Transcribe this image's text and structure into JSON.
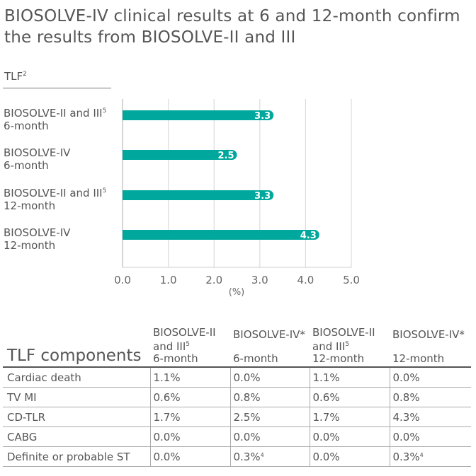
{
  "headline": {
    "line1": "BIOSOLVE-IV clinical results at 6 and 12-month confirm",
    "line2": "the results from BIOSOLVE-II and III"
  },
  "chart_data": {
    "type": "bar",
    "orientation": "horizontal",
    "ylabel": "TLF",
    "ylabel_sup": "2",
    "xlabel": "(%)",
    "xlim": [
      0,
      5
    ],
    "xticks": [
      "0.0",
      "1.0",
      "2.0",
      "3.0",
      "4.0",
      "5.0"
    ],
    "grid": true,
    "bar_color": "#00a79d",
    "categories": [
      {
        "name": "BIOSOLVE-II and III",
        "sup": "5",
        "period": "6-month"
      },
      {
        "name": "BIOSOLVE-IV",
        "sup": "",
        "period": "6-month"
      },
      {
        "name": "BIOSOLVE-II and III",
        "sup": "5",
        "period": "12-month"
      },
      {
        "name": "BIOSOLVE-IV",
        "sup": "",
        "period": "12-month"
      }
    ],
    "values": [
      3.3,
      2.5,
      3.3,
      4.3
    ],
    "value_labels": [
      "3.3",
      "2.5",
      "3.3",
      "4.3"
    ]
  },
  "table": {
    "title": "TLF components",
    "columns": [
      {
        "line1": "BIOSOLVE-II",
        "line2": "and III",
        "sup": "5",
        "line3": "6-month"
      },
      {
        "line1": "",
        "line2": "BIOSOLVE-IV*",
        "sup": "",
        "line3": "6-month"
      },
      {
        "line1": "BIOSOLVE-II",
        "line2": "and III",
        "sup": "5",
        "line3": "12-month"
      },
      {
        "line1": "",
        "line2": "BIOSOLVE-IV*",
        "sup": "",
        "line3": "12-month"
      }
    ],
    "rows": [
      {
        "label": "Cardiac death",
        "cells": [
          {
            "v": "1.1%",
            "s": ""
          },
          {
            "v": "0.0%",
            "s": ""
          },
          {
            "v": "1.1%",
            "s": ""
          },
          {
            "v": "0.0%",
            "s": ""
          }
        ]
      },
      {
        "label": "TV MI",
        "cells": [
          {
            "v": "0.6%",
            "s": ""
          },
          {
            "v": "0.8%",
            "s": ""
          },
          {
            "v": "0.6%",
            "s": ""
          },
          {
            "v": "0.8%",
            "s": ""
          }
        ]
      },
      {
        "label": "CD-TLR",
        "cells": [
          {
            "v": "1.7%",
            "s": ""
          },
          {
            "v": "2.5%",
            "s": ""
          },
          {
            "v": "1.7%",
            "s": ""
          },
          {
            "v": "4.3%",
            "s": ""
          }
        ]
      },
      {
        "label": "CABG",
        "cells": [
          {
            "v": "0.0%",
            "s": ""
          },
          {
            "v": "0.0%",
            "s": ""
          },
          {
            "v": "0.0%",
            "s": ""
          },
          {
            "v": "0.0%",
            "s": ""
          }
        ]
      },
      {
        "label": "Definite or probable ST",
        "cells": [
          {
            "v": "0.0%",
            "s": ""
          },
          {
            "v": "0.3%",
            "s": "4"
          },
          {
            "v": "0.0%",
            "s": ""
          },
          {
            "v": "0.3%",
            "s": "4"
          }
        ]
      }
    ]
  }
}
